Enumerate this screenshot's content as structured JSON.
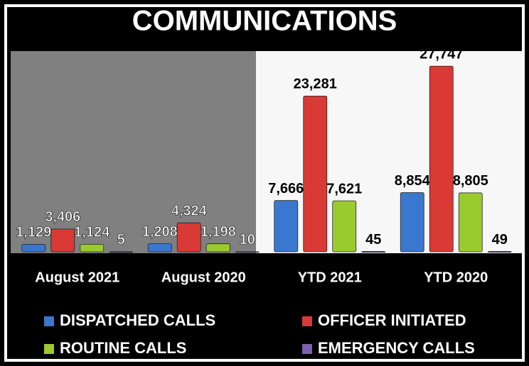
{
  "chart_data": {
    "type": "bar",
    "title": "COMMUNICATIONS",
    "categories": [
      "August 2021",
      "August 2020",
      "YTD 2021",
      "YTD 2020"
    ],
    "series": [
      {
        "name": "DISPATCHED CALLS",
        "color": "#3a78d0",
        "values": [
          1129,
          1208,
          7666,
          8854
        ],
        "value_labels": [
          "1,129",
          "1,208",
          "7,666",
          "8,854"
        ]
      },
      {
        "name": "OFFICER INITIATED",
        "color": "#d93a35",
        "values": [
          3406,
          4324,
          23281,
          27747
        ],
        "value_labels": [
          "3,406",
          "4,324",
          "23,281",
          "27,747"
        ]
      },
      {
        "name": "ROUTINE CALLS",
        "color": "#9acb2e",
        "values": [
          1124,
          1198,
          7621,
          8805
        ],
        "value_labels": [
          "1,124",
          "1,198",
          "7,621",
          "8,805"
        ]
      },
      {
        "name": "EMERGENCY CALLS",
        "color": "#7f5fb0",
        "values": [
          5,
          10,
          45,
          49
        ]
      }
    ],
    "ylim": [
      0,
      30000
    ],
    "legend": "bottom"
  }
}
